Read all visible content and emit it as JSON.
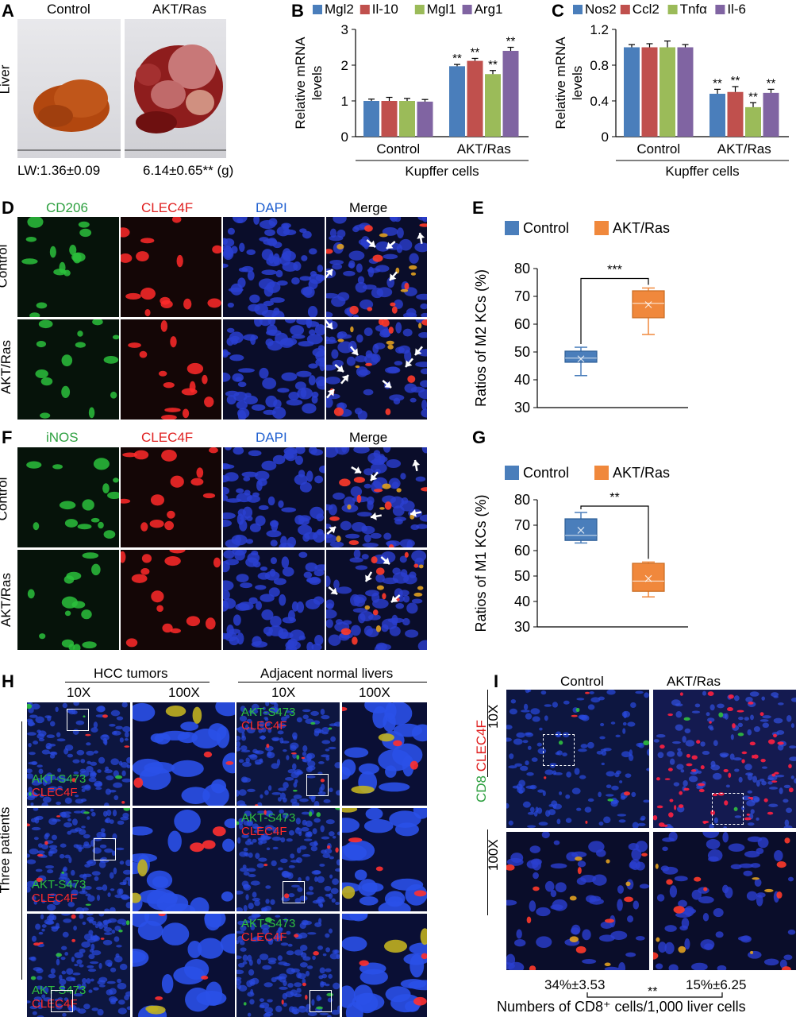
{
  "panelA": {
    "letter": "A",
    "row_label": "Liver",
    "groups": [
      "Control",
      "AKT/Ras"
    ],
    "lw_control": "LW:1.36±0.09",
    "lw_aktras": "6.14±0.65** (g)"
  },
  "panelB": {
    "letter": "B",
    "xgroup": "Kupffer cells",
    "chart_data": {
      "type": "bar",
      "categories": [
        "Control",
        "AKT/Ras"
      ],
      "series": [
        {
          "name": "Mgl2",
          "values": [
            1.0,
            1.97
          ],
          "err": [
            0.05,
            0.05
          ],
          "sig": [
            "",
            "**"
          ]
        },
        {
          "name": "Il-10",
          "values": [
            1.0,
            2.12
          ],
          "err": [
            0.1,
            0.07
          ],
          "sig": [
            "",
            "**"
          ]
        },
        {
          "name": "Mgl1",
          "values": [
            1.0,
            1.75
          ],
          "err": [
            0.07,
            0.1
          ],
          "sig": [
            "",
            "**"
          ]
        },
        {
          "name": "Arg1",
          "values": [
            0.98,
            2.4
          ],
          "err": [
            0.06,
            0.1
          ],
          "sig": [
            "",
            "**"
          ]
        }
      ],
      "ylabel": "Relative mRNA levels",
      "ylim": [
        0,
        3
      ],
      "yticks": [
        "0",
        "1",
        "2",
        "3"
      ],
      "colors": [
        "#4a7ebb",
        "#c0504d",
        "#9bbb59",
        "#8064a2"
      ]
    }
  },
  "panelC": {
    "letter": "C",
    "xgroup": "Kupffer cells",
    "chart_data": {
      "type": "bar",
      "categories": [
        "Control",
        "AKT/Ras"
      ],
      "series": [
        {
          "name": "Nos2",
          "values": [
            1.0,
            0.48
          ],
          "err": [
            0.03,
            0.05
          ],
          "sig": [
            "",
            "**"
          ]
        },
        {
          "name": "Ccl2",
          "values": [
            1.0,
            0.5
          ],
          "err": [
            0.04,
            0.06
          ],
          "sig": [
            "",
            "**"
          ]
        },
        {
          "name": "Tnfα",
          "values": [
            1.0,
            0.33
          ],
          "err": [
            0.07,
            0.05
          ],
          "sig": [
            "",
            "**"
          ]
        },
        {
          "name": "Il-6",
          "values": [
            1.0,
            0.49
          ],
          "err": [
            0.03,
            0.04
          ],
          "sig": [
            "",
            "**"
          ]
        }
      ],
      "ylabel": "Relative mRNA levels",
      "ylim": [
        0,
        1.2
      ],
      "yticks": [
        "0",
        "0.4",
        "0.8",
        "1.2"
      ],
      "colors": [
        "#4a7ebb",
        "#c0504d",
        "#9bbb59",
        "#8064a2"
      ]
    }
  },
  "panelD": {
    "letter": "D",
    "channels": [
      "CD206",
      "CLEC4F",
      "DAPI",
      "Merge"
    ],
    "rows": [
      "Control",
      "AKT/Ras"
    ]
  },
  "panelE": {
    "letter": "E",
    "sig": "***",
    "chart_data": {
      "type": "box",
      "ylabel": "Ratios of M2 KCs (%)",
      "ylim": [
        30,
        80
      ],
      "yticks": [
        "30",
        "40",
        "50",
        "60",
        "70",
        "80"
      ],
      "series": [
        {
          "name": "Control",
          "min": 41.5,
          "q1": 46.3,
          "median": 47.8,
          "q3": 50.3,
          "max": 51.7,
          "mean": 47.5,
          "color": "#4a7ebb"
        },
        {
          "name": "AKT/Ras",
          "min": 56.3,
          "q1": 62.3,
          "median": 67.5,
          "q3": 72.0,
          "max": 73.0,
          "mean": 67.0,
          "color": "#f0883c"
        }
      ]
    }
  },
  "panelF": {
    "letter": "F",
    "channels": [
      "iNOS",
      "CLEC4F",
      "DAPI",
      "Merge"
    ],
    "rows": [
      "Control",
      "AKT/Ras"
    ]
  },
  "panelG": {
    "letter": "G",
    "sig": "**",
    "chart_data": {
      "type": "box",
      "ylabel": "Ratios of M1 KCs (%)",
      "ylim": [
        30,
        80
      ],
      "yticks": [
        "30",
        "40",
        "50",
        "60",
        "70",
        "80"
      ],
      "series": [
        {
          "name": "Control",
          "min": 63.0,
          "q1": 64.0,
          "median": 66.0,
          "q3": 72.5,
          "max": 75.0,
          "mean": 68.0,
          "color": "#4a7ebb"
        },
        {
          "name": "AKT/Ras",
          "min": 41.8,
          "q1": 44.0,
          "median": 48.0,
          "q3": 55.0,
          "max": 55.5,
          "mean": 49.0,
          "color": "#f0883c"
        }
      ]
    }
  },
  "panelH": {
    "letter": "H",
    "group_left": "HCC tumors",
    "group_right": "Adjacent normal livers",
    "mag": [
      "10X",
      "100X",
      "10X",
      "100X"
    ],
    "side_label": "Three patients",
    "stain_green": "AKT-S473",
    "stain_red": "CLEC4F"
  },
  "panelI": {
    "letter": "I",
    "groups": [
      "Control",
      "AKT/Ras"
    ],
    "mag": [
      "10X",
      "100X"
    ],
    "stain_green": "CD8",
    "stain_red": "CLEC4F",
    "values": [
      "34%±3.53",
      "15%±6.25"
    ],
    "sig": "**",
    "footer": "Numbers of CD8⁺ cells/1,000 liver cells"
  }
}
